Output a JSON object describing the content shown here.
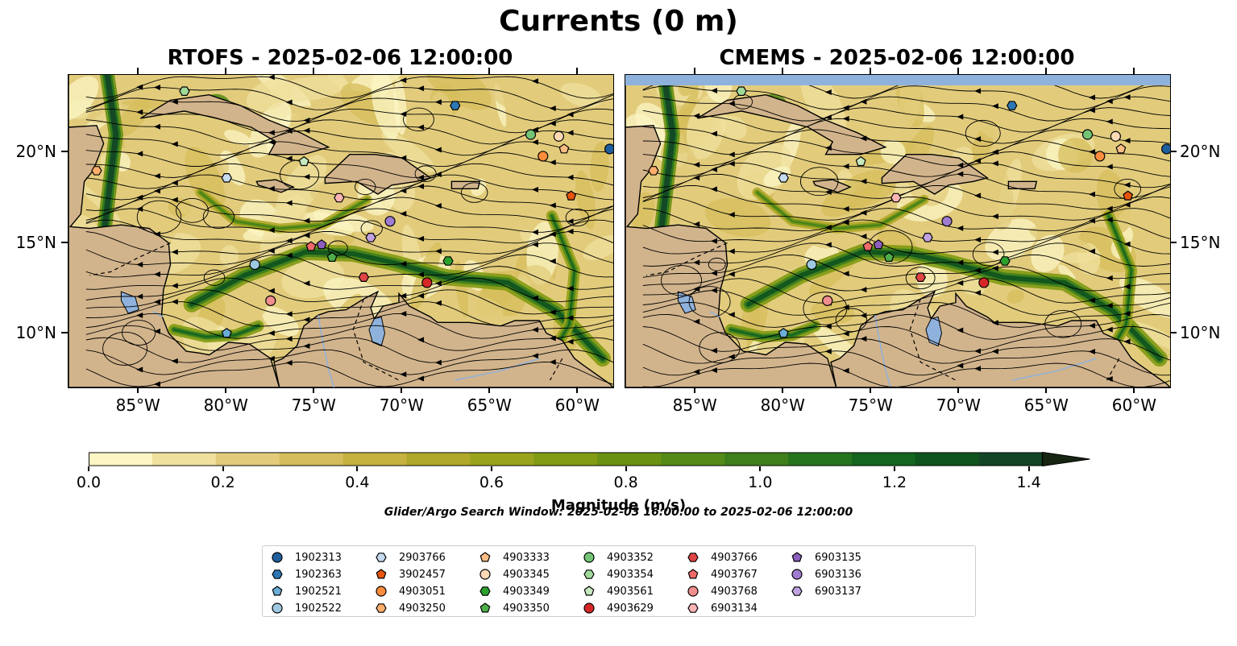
{
  "figure": {
    "title": "Currents (0 m)",
    "panels": [
      {
        "title": "RTOFS - 2025-02-06 12:00:00"
      },
      {
        "title": "CMEMS - 2025-02-06 12:00:00"
      }
    ],
    "lon_labels": [
      "85°W",
      "80°W",
      "75°W",
      "70°W",
      "65°W",
      "60°W"
    ],
    "lat_labels": [
      "20°N",
      "15°N",
      "10°N"
    ],
    "colors": {
      "land": "#d2b48c",
      "water_feature": "#8fb2dd",
      "streamline": "#000000"
    }
  },
  "colorbar": {
    "label": "Magnitude (m/s)",
    "ticks": [
      "0.0",
      "0.2",
      "0.4",
      "0.6",
      "0.8",
      "1.0",
      "1.2",
      "1.4"
    ],
    "range": [
      0,
      1.5
    ],
    "extend": "max",
    "colors": [
      "#fbf6c4",
      "#efe09e",
      "#e2cc7c",
      "#d5bd5c",
      "#c6b23e",
      "#b0a82a",
      "#9aa31c",
      "#829b14",
      "#6b9112",
      "#548a17",
      "#3e7f1c",
      "#26751e",
      "#14651f",
      "#0f541f",
      "#124526",
      "#173a26",
      "#182f1e",
      "#172412"
    ]
  },
  "search_window": "Glider/Argo Search Window: 2025-02-03 16:00:00 to 2025-02-06 12:00:00",
  "legend": {
    "items": [
      {
        "id": "1902313",
        "marker": "circle",
        "color": "#1f5f9e"
      },
      {
        "id": "1902363",
        "marker": "hexagon",
        "color": "#2f77b4"
      },
      {
        "id": "1902521",
        "marker": "pentagon",
        "color": "#6aaed6"
      },
      {
        "id": "1902522",
        "marker": "circle",
        "color": "#9ecae1"
      },
      {
        "id": "2903766",
        "marker": "hexagon",
        "color": "#c6dbef"
      },
      {
        "id": "3902457",
        "marker": "pentagon",
        "color": "#e6550d"
      },
      {
        "id": "4903051",
        "marker": "circle",
        "color": "#fd8d3c"
      },
      {
        "id": "4903250",
        "marker": "hexagon",
        "color": "#fdae6b"
      },
      {
        "id": "4903333",
        "marker": "pentagon",
        "color": "#fdbe85"
      },
      {
        "id": "4903345",
        "marker": "circle",
        "color": "#fdd9b5"
      },
      {
        "id": "4903349",
        "marker": "hexagon",
        "color": "#2ca02c"
      },
      {
        "id": "4903350",
        "marker": "pentagon",
        "color": "#4dae4a"
      },
      {
        "id": "4903352",
        "marker": "circle",
        "color": "#74c476"
      },
      {
        "id": "4903354",
        "marker": "hexagon",
        "color": "#a1d99b"
      },
      {
        "id": "4903561",
        "marker": "pentagon",
        "color": "#c7e9c0"
      },
      {
        "id": "4903629",
        "marker": "circle",
        "color": "#d62728"
      },
      {
        "id": "4903766",
        "marker": "hexagon",
        "color": "#e04545"
      },
      {
        "id": "4903767",
        "marker": "pentagon",
        "color": "#ef6a6a"
      },
      {
        "id": "4903768",
        "marker": "circle",
        "color": "#f28e8e"
      },
      {
        "id": "6903134",
        "marker": "hexagon",
        "color": "#fbb4b4"
      },
      {
        "id": "6903135",
        "marker": "pentagon",
        "color": "#8c5fbf"
      },
      {
        "id": "6903136",
        "marker": "circle",
        "color": "#a07cd0"
      },
      {
        "id": "6903137",
        "marker": "hexagon",
        "color": "#c0a2e0"
      }
    ]
  },
  "floats": [
    {
      "id": "1902313",
      "lon": -58.2,
      "lat": 20.2
    },
    {
      "id": "1902363",
      "lon": -67.0,
      "lat": 22.6
    },
    {
      "id": "1902521",
      "lon": -80.0,
      "lat": 10.0
    },
    {
      "id": "1902522",
      "lon": -78.4,
      "lat": 13.8
    },
    {
      "id": "2903766",
      "lon": -80.0,
      "lat": 18.6
    },
    {
      "id": "3902457",
      "lon": -60.4,
      "lat": 17.6
    },
    {
      "id": "4903051",
      "lon": -62.0,
      "lat": 19.8
    },
    {
      "id": "4903250",
      "lon": -87.4,
      "lat": 19.0
    },
    {
      "id": "4903333",
      "lon": -60.8,
      "lat": 20.2
    },
    {
      "id": "4903345",
      "lon": -61.1,
      "lat": 20.9
    },
    {
      "id": "4903349",
      "lon": -67.4,
      "lat": 14.0
    },
    {
      "id": "4903350",
      "lon": -74.0,
      "lat": 14.2
    },
    {
      "id": "4903352",
      "lon": -62.7,
      "lat": 21.0
    },
    {
      "id": "4903354",
      "lon": -82.4,
      "lat": 23.4
    },
    {
      "id": "4903561",
      "lon": -75.6,
      "lat": 19.5
    },
    {
      "id": "4903629",
      "lon": -68.6,
      "lat": 12.8
    },
    {
      "id": "4903766",
      "lon": -72.2,
      "lat": 13.1
    },
    {
      "id": "4903767",
      "lon": -75.2,
      "lat": 14.8
    },
    {
      "id": "4903768",
      "lon": -77.5,
      "lat": 11.8
    },
    {
      "id": "6903134",
      "lon": -73.6,
      "lat": 17.5
    },
    {
      "id": "6903135",
      "lon": -74.6,
      "lat": 14.9
    },
    {
      "id": "6903136",
      "lon": -70.7,
      "lat": 16.2
    },
    {
      "id": "6903137",
      "lon": -71.8,
      "lat": 15.3
    }
  ]
}
